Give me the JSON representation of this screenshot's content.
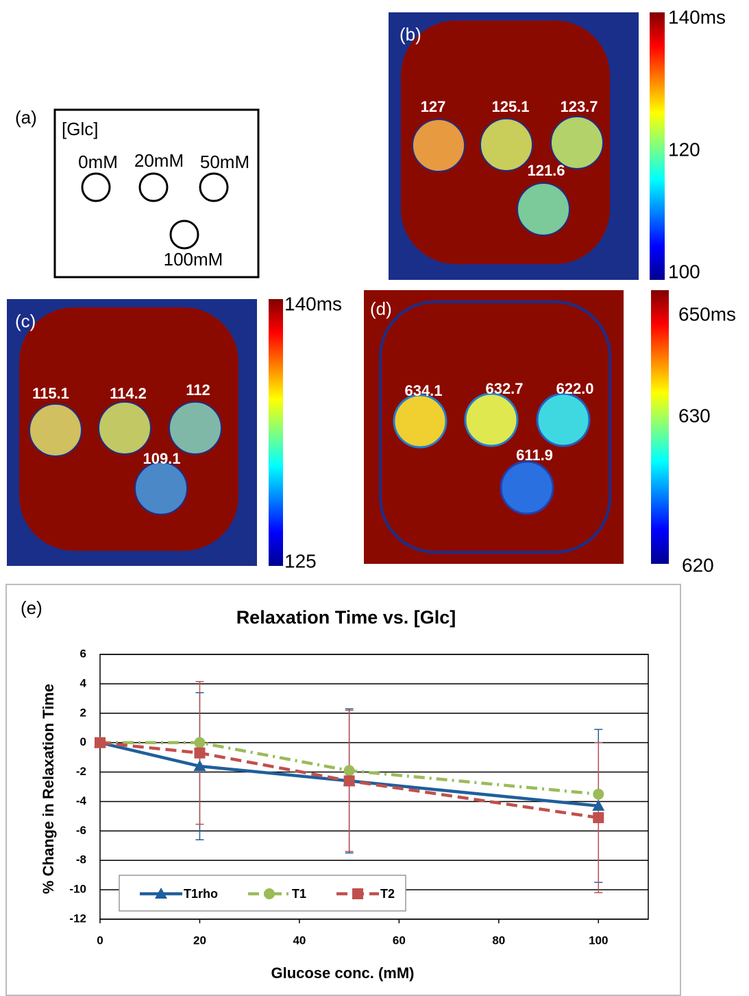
{
  "panels": {
    "a": {
      "label": "(a)",
      "heading": "[Glc]",
      "wells": [
        "0mM",
        "20mM",
        "50mM",
        "100mM"
      ]
    },
    "b": {
      "label": "(b)",
      "roi_values": [
        "127",
        "125.1",
        "123.7",
        "121.6"
      ],
      "colorbar_ticks": [
        "140ms",
        "120",
        "100"
      ]
    },
    "c": {
      "label": "(c)",
      "roi_values": [
        "115.1",
        "114.2",
        "112",
        "109.1"
      ],
      "colorbar_ticks": [
        "140ms",
        "125"
      ]
    },
    "d": {
      "label": "(d)",
      "roi_values": [
        "634.1",
        "632.7",
        "622.0",
        "611.9"
      ],
      "colorbar_ticks": [
        "650ms",
        "630",
        "620"
      ]
    }
  },
  "chart_data": {
    "type": "line",
    "panel_label": "(e)",
    "title": "Relaxation Time vs. [Glc]",
    "x_label": "Glucose conc. (mM)",
    "y_label": "% Change in Relaxation Time",
    "x": [
      0,
      20,
      50,
      100
    ],
    "series": [
      {
        "name": "T1rho",
        "color": "#1f5f9c",
        "marker": "triangle",
        "dash": "solid",
        "values": [
          0,
          -1.6,
          -2.6,
          -4.3
        ],
        "errors": [
          null,
          5,
          4.9,
          5.2
        ]
      },
      {
        "name": "T1",
        "color": "#9bbb59",
        "marker": "circle",
        "dash": "dashdot",
        "values": [
          0,
          0,
          -1.9,
          -3.5
        ]
      },
      {
        "name": "T2",
        "color": "#c0504d",
        "marker": "square",
        "dash": "dash",
        "values": [
          0,
          -0.7,
          -2.6,
          -5.1
        ],
        "errors": [
          null,
          4.85,
          4.8,
          5.1
        ]
      }
    ],
    "xlim": [
      0,
      110
    ],
    "xticks": [
      0,
      20,
      40,
      60,
      80,
      100
    ],
    "ylim": [
      -12,
      6
    ],
    "yticks": [
      -12,
      -10,
      -8,
      -6,
      -4,
      -2,
      0,
      2,
      4,
      6
    ],
    "grid": true,
    "legend": "lower-left"
  }
}
